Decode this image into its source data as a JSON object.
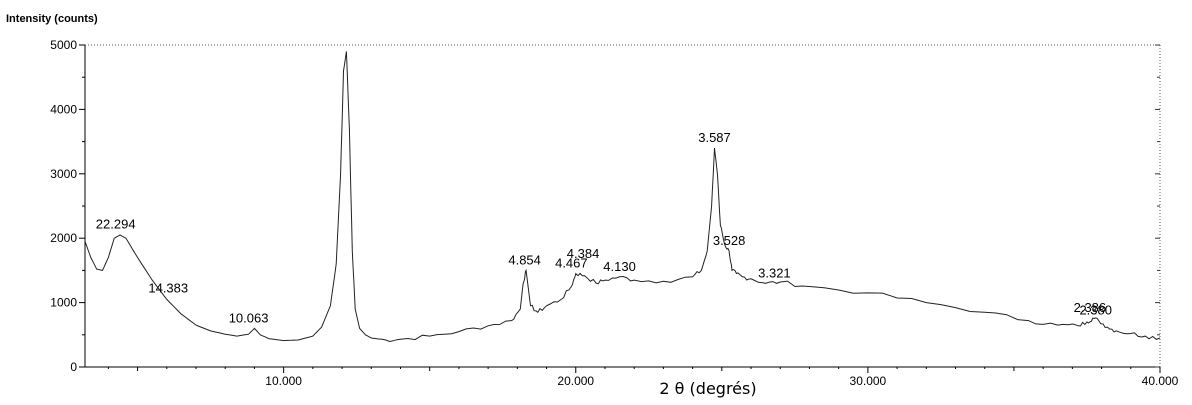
{
  "chart_data": {
    "type": "line",
    "title": "",
    "ylabel": "Intensity (counts)",
    "xlabel": "2 θ (degrés)",
    "xlim": [
      3.2,
      40
    ],
    "ylim": [
      0,
      5000
    ],
    "x_ticks": [
      10,
      20,
      30,
      40
    ],
    "x_tick_labels": [
      "10.000",
      "20.000",
      "30.000",
      "40.000"
    ],
    "y_ticks": [
      0,
      1000,
      2000,
      3000,
      4000,
      5000
    ],
    "y_tick_labels": [
      "0",
      "1000",
      "2000",
      "3000",
      "4000",
      "5000"
    ],
    "grid": false,
    "line_color": "#222222",
    "series": [
      {
        "x": [
          3.2,
          3.4,
          3.6,
          3.8,
          4.0,
          4.2,
          4.4,
          4.6,
          4.8,
          5.0,
          5.5,
          6.0,
          6.5,
          7.0,
          7.5,
          8.0,
          8.4,
          8.8,
          9.0,
          9.2,
          9.5,
          10.0,
          10.5,
          11.0,
          11.3,
          11.6,
          11.8,
          11.95,
          12.05,
          12.15,
          12.25,
          12.35,
          12.45,
          12.6,
          12.8,
          13.0,
          13.5,
          14.0,
          15.0,
          16.0,
          17.0,
          17.8,
          18.1,
          18.2,
          18.3,
          18.45,
          18.7,
          19.0,
          19.5,
          19.85,
          20.0,
          20.3,
          20.7,
          21.0,
          21.5,
          22.0,
          23.0,
          24.0,
          24.3,
          24.5,
          24.65,
          24.75,
          24.85,
          24.95,
          25.1,
          25.25,
          25.35,
          25.5,
          25.7,
          26.0,
          26.5,
          27.0,
          28.0,
          30.0,
          32.0,
          34.0,
          35.5,
          36.5,
          37.2,
          37.5,
          37.7,
          37.9,
          38.2,
          38.5,
          39.0,
          39.5,
          40.0
        ],
        "y": [
          1950,
          1700,
          1520,
          1500,
          1700,
          2000,
          2050,
          2000,
          1850,
          1700,
          1350,
          1050,
          820,
          650,
          560,
          510,
          480,
          510,
          600,
          500,
          440,
          410,
          420,
          480,
          620,
          950,
          1600,
          3000,
          4600,
          4900,
          3700,
          1800,
          900,
          600,
          500,
          450,
          420,
          430,
          480,
          550,
          640,
          720,
          900,
          1300,
          1500,
          950,
          850,
          950,
          1050,
          1250,
          1450,
          1420,
          1300,
          1350,
          1400,
          1350,
          1330,
          1400,
          1500,
          1800,
          2500,
          3400,
          3000,
          2200,
          1900,
          1800,
          1500,
          1450,
          1400,
          1370,
          1300,
          1320,
          1250,
          1150,
          1000,
          850,
          720,
          650,
          640,
          700,
          760,
          720,
          620,
          560,
          520,
          480,
          450
        ]
      }
    ],
    "annotations": [
      {
        "text": "22.294",
        "x": 4.25,
        "y": 2060
      },
      {
        "text": "14.383",
        "x": 6.05,
        "y": 1060
      },
      {
        "text": "10.063",
        "x": 8.8,
        "y": 600
      },
      {
        "text": "4.854",
        "x": 18.25,
        "y": 1500
      },
      {
        "text": "4.467",
        "x": 19.85,
        "y": 1450
      },
      {
        "text": "4.384",
        "x": 20.25,
        "y": 1600
      },
      {
        "text": "4.130",
        "x": 21.5,
        "y": 1400
      },
      {
        "text": "3.587",
        "x": 24.75,
        "y": 3400
      },
      {
        "text": "3.528",
        "x": 25.25,
        "y": 1800
      },
      {
        "text": "3.321",
        "x": 26.8,
        "y": 1300
      },
      {
        "text": "2.386",
        "x": 37.6,
        "y": 760
      },
      {
        "text": "2.380",
        "x": 37.8,
        "y": 720
      }
    ]
  }
}
